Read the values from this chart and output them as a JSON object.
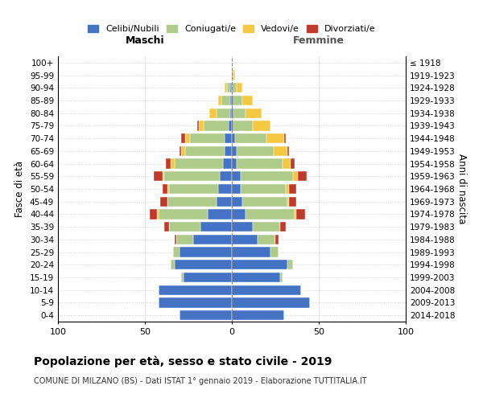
{
  "age_groups": [
    "0-4",
    "5-9",
    "10-14",
    "15-19",
    "20-24",
    "25-29",
    "30-34",
    "35-39",
    "40-44",
    "45-49",
    "50-54",
    "55-59",
    "60-64",
    "65-69",
    "70-74",
    "75-79",
    "80-84",
    "85-89",
    "90-94",
    "95-99",
    "100+"
  ],
  "birth_years": [
    "2014-2018",
    "2009-2013",
    "2004-2008",
    "1999-2003",
    "1994-1998",
    "1989-1993",
    "1984-1988",
    "1979-1983",
    "1974-1978",
    "1969-1973",
    "1964-1968",
    "1959-1963",
    "1954-1958",
    "1949-1953",
    "1944-1948",
    "1939-1943",
    "1934-1938",
    "1929-1933",
    "1924-1928",
    "1919-1923",
    "≤ 1918"
  ],
  "males": {
    "celibi": [
      30,
      42,
      42,
      28,
      33,
      30,
      22,
      18,
      14,
      9,
      8,
      7,
      5,
      4,
      4,
      2,
      1,
      1,
      1,
      0,
      0
    ],
    "coniugati": [
      0,
      0,
      0,
      1,
      2,
      4,
      10,
      18,
      28,
      28,
      28,
      32,
      28,
      23,
      20,
      14,
      8,
      5,
      2,
      0,
      0
    ],
    "vedovi": [
      0,
      0,
      0,
      0,
      0,
      0,
      0,
      0,
      1,
      0,
      1,
      1,
      2,
      2,
      3,
      3,
      4,
      2,
      1,
      0,
      0
    ],
    "divorziati": [
      0,
      0,
      0,
      0,
      0,
      0,
      1,
      3,
      4,
      4,
      3,
      5,
      3,
      1,
      2,
      1,
      0,
      0,
      0,
      0,
      0
    ]
  },
  "females": {
    "nubili": [
      30,
      45,
      40,
      28,
      32,
      22,
      15,
      12,
      8,
      6,
      5,
      5,
      3,
      3,
      2,
      1,
      1,
      1,
      0,
      0,
      0
    ],
    "coniugate": [
      0,
      0,
      0,
      1,
      3,
      5,
      10,
      16,
      28,
      26,
      26,
      30,
      26,
      21,
      18,
      11,
      7,
      5,
      3,
      1,
      0
    ],
    "vedove": [
      0,
      0,
      0,
      0,
      0,
      0,
      0,
      0,
      1,
      1,
      2,
      3,
      5,
      8,
      10,
      10,
      9,
      6,
      3,
      1,
      0
    ],
    "divorziate": [
      0,
      0,
      0,
      0,
      0,
      0,
      2,
      3,
      5,
      4,
      4,
      5,
      2,
      1,
      1,
      0,
      0,
      0,
      0,
      0,
      0
    ]
  },
  "colors": {
    "celibi": "#4472C4",
    "coniugati": "#AECB8A",
    "vedovi": "#F5C842",
    "divorziati": "#C0392B"
  },
  "xlim": 100,
  "title": "Popolazione per età, sesso e stato civile - 2019",
  "subtitle": "COMUNE DI MILZANO (BS) - Dati ISTAT 1° gennaio 2019 - Elaborazione TUTTITALIA.IT",
  "ylabel_left": "Fasce di età",
  "ylabel_right": "Anni di nascita",
  "xlabel_left": "Maschi",
  "xlabel_right": "Femmine"
}
